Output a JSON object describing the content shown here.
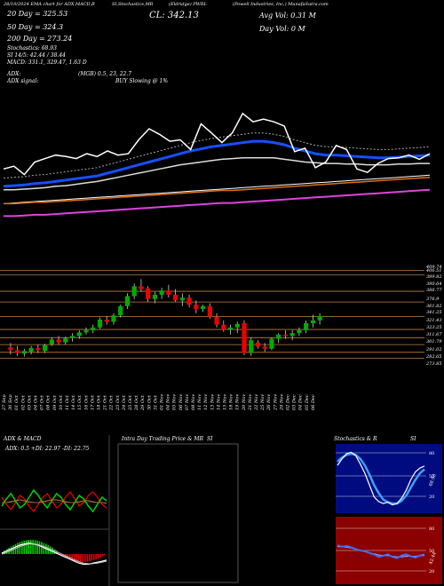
{
  "header": {
    "line1": {
      "date": "28/10/2024",
      "title": "EMA chart for ADX,MACD,R",
      "stoch": "SI,Stochastics,MR",
      "name": "(Eldridge) PWRL",
      "company": "(Powell Industries, Inc.) MunafaSutra.com"
    },
    "cl": "CL: 342.13",
    "avg_vol": "Avg Vol: 0.31 M",
    "day_vol": "Day Vol: 0   M",
    "ema20": "20 Day = 325.53",
    "ema50": "50 Day = 324.3",
    "ema200": "200 Day = 273.24",
    "stochastics": "Stochastics: 68.93",
    "si": "SI 14/5: 42.44 / 38.44",
    "macd": "MACD: 331.1, 329.47, 1.63 D",
    "adx": "ADX:",
    "mgb": "(MGB) 0.5, 23, 22.7",
    "adx_signal": "ADX signal:",
    "buy": "BUY Slowing @ 1%"
  },
  "colors": {
    "up": "#0a0",
    "down": "#e00",
    "ema_blue": "#1550ff",
    "ema_orange": "#e07010",
    "ema_magenta": "#dd44dd",
    "level": "#c08040",
    "stoch_bg": "#000b80",
    "si_bg": "#8b0000"
  },
  "price_levels": [
    "409.74",
    "406.51",
    "399.82",
    "390.64",
    "386.77",
    "376.9",
    "361.82",
    "341.25",
    "321.43",
    "323.25",
    "311.67",
    "301.79",
    "291.02",
    "282.65",
    "273.85"
  ],
  "x_dates": [
    "27 Sep",
    "30 Sep",
    "01 Oct",
    "02 Oct",
    "03 Oct",
    "04 Oct",
    "07 Oct",
    "08 Oct",
    "09 Oct",
    "10 Oct",
    "11 Oct",
    "14 Oct",
    "15 Oct",
    "16 Oct",
    "17 Oct",
    "18 Oct",
    "21 Oct",
    "22 Oct",
    "23 Oct",
    "24 Oct",
    "25 Oct",
    "28 Oct",
    "29 Oct",
    "30 Oct",
    "31 Oct",
    "01 Nov",
    "04 Nov",
    "05 Nov",
    "06 Nov",
    "07 Nov",
    "08 Nov",
    "11 Nov",
    "12 Nov",
    "13 Nov",
    "14 Nov",
    "15 Nov",
    "18 Nov",
    "19 Nov",
    "20 Nov",
    "21 Nov",
    "22 Nov",
    "25 Nov",
    "26 Nov",
    "27 Nov",
    "29 Nov",
    "02 Dec",
    "03 Dec",
    "04 Dec",
    "05 Dec",
    "06 Dec"
  ],
  "panels": {
    "adx_title": "ADX  & MACD",
    "adx_line": "ADX: 0.5  +DI: 22.97  -DI: 22.75",
    "intra_title": "Intra  Day Trading Price  & MR",
    "intra_si": "SI",
    "stoch_title": "Stochastics & R",
    "stoch_si": "SI",
    "stoch_ticks": [
      "80",
      "50",
      "20"
    ],
    "stoch_value": "68.93",
    "si_ticks": [
      "80",
      "50",
      "20"
    ],
    "si_value": "42.44"
  },
  "chart_data": {
    "type": "candlestick",
    "candles": [
      {
        "o": 298,
        "h": 304,
        "l": 288,
        "c": 294
      },
      {
        "o": 294,
        "h": 300,
        "l": 286,
        "c": 290
      },
      {
        "o": 289,
        "h": 296,
        "l": 285,
        "c": 293
      },
      {
        "o": 292,
        "h": 300,
        "l": 288,
        "c": 297
      },
      {
        "o": 297,
        "h": 302,
        "l": 290,
        "c": 294
      },
      {
        "o": 293,
        "h": 303,
        "l": 290,
        "c": 301
      },
      {
        "o": 302,
        "h": 312,
        "l": 300,
        "c": 309
      },
      {
        "o": 309,
        "h": 314,
        "l": 302,
        "c": 305
      },
      {
        "o": 305,
        "h": 313,
        "l": 302,
        "c": 311
      },
      {
        "o": 311,
        "h": 318,
        "l": 306,
        "c": 314
      },
      {
        "o": 314,
        "h": 322,
        "l": 310,
        "c": 319
      },
      {
        "o": 319,
        "h": 326,
        "l": 316,
        "c": 322
      },
      {
        "o": 322,
        "h": 330,
        "l": 318,
        "c": 326
      },
      {
        "o": 326,
        "h": 340,
        "l": 324,
        "c": 337
      },
      {
        "o": 337,
        "h": 342,
        "l": 330,
        "c": 334
      },
      {
        "o": 334,
        "h": 346,
        "l": 330,
        "c": 343
      },
      {
        "o": 343,
        "h": 358,
        "l": 340,
        "c": 356
      },
      {
        "o": 356,
        "h": 374,
        "l": 352,
        "c": 370
      },
      {
        "o": 370,
        "h": 388,
        "l": 366,
        "c": 384
      },
      {
        "o": 384,
        "h": 394,
        "l": 376,
        "c": 380
      },
      {
        "o": 381,
        "h": 384,
        "l": 362,
        "c": 366
      },
      {
        "o": 366,
        "h": 376,
        "l": 360,
        "c": 372
      },
      {
        "o": 372,
        "h": 382,
        "l": 366,
        "c": 378
      },
      {
        "o": 378,
        "h": 386,
        "l": 368,
        "c": 372
      },
      {
        "o": 372,
        "h": 380,
        "l": 362,
        "c": 364
      },
      {
        "o": 364,
        "h": 374,
        "l": 356,
        "c": 368
      },
      {
        "o": 368,
        "h": 372,
        "l": 354,
        "c": 358
      },
      {
        "o": 358,
        "h": 364,
        "l": 346,
        "c": 352
      },
      {
        "o": 352,
        "h": 358,
        "l": 348,
        "c": 356
      },
      {
        "o": 356,
        "h": 360,
        "l": 338,
        "c": 341
      },
      {
        "o": 341,
        "h": 346,
        "l": 326,
        "c": 330
      },
      {
        "o": 330,
        "h": 336,
        "l": 320,
        "c": 323
      },
      {
        "o": 323,
        "h": 330,
        "l": 316,
        "c": 326
      },
      {
        "o": 326,
        "h": 334,
        "l": 318,
        "c": 331
      },
      {
        "o": 332,
        "h": 336,
        "l": 287,
        "c": 290
      },
      {
        "o": 290,
        "h": 312,
        "l": 286,
        "c": 308
      },
      {
        "o": 305,
        "h": 308,
        "l": 296,
        "c": 299
      },
      {
        "o": 299,
        "h": 304,
        "l": 292,
        "c": 296
      },
      {
        "o": 296,
        "h": 312,
        "l": 294,
        "c": 310
      },
      {
        "o": 310,
        "h": 318,
        "l": 304,
        "c": 316
      },
      {
        "o": 316,
        "h": 322,
        "l": 310,
        "c": 314
      },
      {
        "o": 314,
        "h": 322,
        "l": 308,
        "c": 318
      },
      {
        "o": 318,
        "h": 326,
        "l": 314,
        "c": 322
      },
      {
        "o": 322,
        "h": 336,
        "l": 318,
        "c": 332
      },
      {
        "o": 332,
        "h": 344,
        "l": 326,
        "c": 336
      },
      {
        "o": 336,
        "h": 346,
        "l": 330,
        "c": 342
      }
    ],
    "ylim": [
      262,
      412
    ],
    "ema_close": [
      330,
      334,
      322,
      340,
      345,
      350,
      348,
      345,
      352,
      348,
      356,
      350,
      352,
      372,
      388,
      380,
      370,
      372,
      358,
      395,
      382,
      368,
      382,
      410,
      398,
      402,
      398,
      392,
      355,
      360,
      332,
      340,
      364,
      358,
      330,
      325,
      338,
      345,
      346,
      350,
      344,
      352
    ],
    "ema20": [
      305,
      306,
      307,
      309,
      310,
      312,
      314,
      316,
      318,
      320,
      324,
      328,
      332,
      336,
      340,
      344,
      348,
      352,
      356,
      359,
      362,
      364,
      366,
      368,
      370,
      370,
      368,
      365,
      360,
      356,
      352,
      350,
      350,
      349,
      348,
      347,
      346,
      346,
      347,
      348,
      349,
      350
    ],
    "ema50": [
      300,
      300,
      301,
      302,
      303,
      305,
      306,
      308,
      310,
      312,
      315,
      318,
      321,
      324,
      327,
      330,
      333,
      336,
      338,
      340,
      342,
      344,
      345,
      346,
      346,
      346,
      346,
      344,
      342,
      340,
      339,
      338,
      338,
      337,
      337,
      336,
      336,
      336,
      337,
      337,
      338,
      338
    ],
    "ema200": [
      262,
      262,
      263,
      264,
      264,
      265,
      266,
      267,
      268,
      269,
      270,
      271,
      272,
      273,
      274,
      275,
      276,
      277,
      278,
      279,
      280,
      281,
      281,
      282,
      283,
      284,
      285,
      286,
      287,
      288,
      289,
      290,
      291,
      292,
      293,
      294,
      295,
      296,
      297,
      298,
      299,
      300
    ],
    "ema_extra": [
      280,
      281,
      282,
      283,
      284,
      285,
      286,
      287,
      288,
      289,
      290,
      291,
      292,
      293,
      294,
      295,
      296,
      297,
      298,
      299,
      300,
      301,
      302,
      303,
      304,
      305,
      306,
      307,
      308,
      309,
      310,
      311,
      312,
      313,
      314,
      315,
      316,
      317,
      318,
      319,
      320,
      321
    ]
  }
}
